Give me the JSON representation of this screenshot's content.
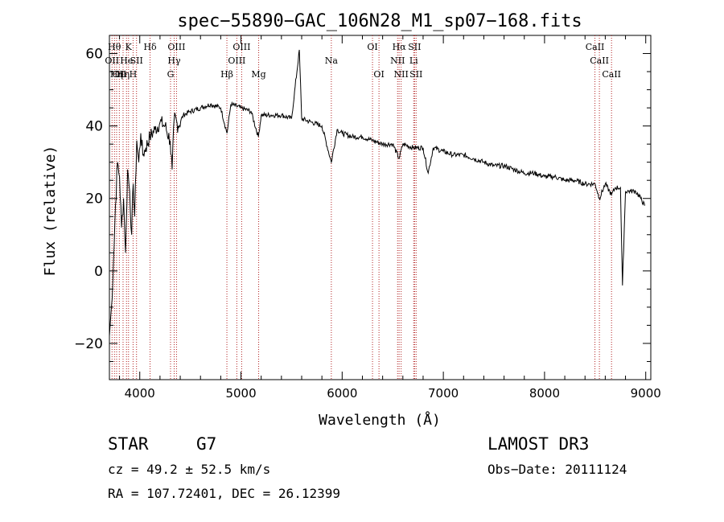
{
  "chart_data": {
    "type": "line",
    "title": "spec−55890−GAC_106N28_M1_sp07−168.fits",
    "xlabel": "Wavelength (Å)",
    "ylabel": "Flux (relative)",
    "xlim": [
      3700,
      9050
    ],
    "ylim": [
      -30,
      65
    ],
    "xticks": [
      4000,
      5000,
      6000,
      7000,
      8000,
      9000
    ],
    "yticks": [
      -20,
      0,
      20,
      40,
      60
    ],
    "xtick_labels": [
      "4000",
      "5000",
      "6000",
      "7000",
      "8000",
      "9000"
    ],
    "ytick_labels": [
      "−20",
      "0",
      "20",
      "40",
      "60"
    ],
    "series": [
      {
        "name": "flux",
        "x": [
          3700,
          3720,
          3740,
          3760,
          3780,
          3800,
          3820,
          3840,
          3860,
          3880,
          3900,
          3920,
          3935,
          3950,
          3970,
          3990,
          4010,
          4030,
          4060,
          4100,
          4150,
          4200,
          4250,
          4300,
          4320,
          4340,
          4380,
          4430,
          4500,
          4600,
          4700,
          4800,
          4862,
          4900,
          5000,
          5100,
          5172,
          5200,
          5300,
          5400,
          5500,
          5577,
          5600,
          5700,
          5800,
          5893,
          5950,
          6000,
          6100,
          6200,
          6300,
          6400,
          6500,
          6563,
          6600,
          6700,
          6800,
          6850,
          6900,
          7000,
          7100,
          7200,
          7300,
          7400,
          7500,
          7600,
          7700,
          7800,
          7900,
          8000,
          8100,
          8200,
          8300,
          8400,
          8500,
          8542,
          8600,
          8662,
          8700,
          8750,
          8770,
          8800,
          8850,
          8900,
          8950,
          8990
        ],
        "y": [
          -18,
          -10,
          2,
          18,
          30,
          26,
          12,
          20,
          5,
          28,
          22,
          10,
          24,
          15,
          36,
          30,
          38,
          32,
          34,
          37,
          39,
          41,
          40,
          36,
          28,
          42,
          40,
          43,
          44,
          45,
          46,
          45,
          38,
          46,
          45,
          44,
          37,
          43,
          43,
          43,
          42,
          61,
          42,
          41,
          40,
          30,
          39,
          38,
          37,
          37,
          36,
          35,
          35,
          31,
          35,
          34,
          34,
          27,
          34,
          33,
          32,
          32,
          31,
          30,
          29,
          29,
          28,
          27,
          27,
          26,
          26,
          25,
          25,
          24,
          24,
          20,
          24,
          21,
          23,
          23,
          -4,
          22,
          22,
          22,
          20,
          18
        ]
      }
    ],
    "line_markers": [
      {
        "wavelength": 3726,
        "label": "OII",
        "row": 2
      },
      {
        "wavelength": 3750,
        "label": "Hθ",
        "row": 1
      },
      {
        "wavelength": 3771,
        "label": "Hη",
        "row": 3
      },
      {
        "wavelength": 3798,
        "label": "OІІ",
        "row": 3
      },
      {
        "wavelength": 3835,
        "label": "Hη",
        "row": 3
      },
      {
        "wavelength": 3869,
        "label": "He",
        "row": 2
      },
      {
        "wavelength": 3889,
        "label": "K",
        "row": 1
      },
      {
        "wavelength": 3934,
        "label": "H",
        "row": 3
      },
      {
        "wavelength": 3968,
        "label": "SII",
        "row": 2
      },
      {
        "wavelength": 4102,
        "label": "Hδ",
        "row": 1
      },
      {
        "wavelength": 4304,
        "label": "G",
        "row": 3
      },
      {
        "wavelength": 4340,
        "label": "Hγ",
        "row": 2
      },
      {
        "wavelength": 4363,
        "label": "OIII",
        "row": 1
      },
      {
        "wavelength": 4861,
        "label": "Hβ",
        "row": 3
      },
      {
        "wavelength": 4959,
        "label": "OIII",
        "row": 2
      },
      {
        "wavelength": 5007,
        "label": "OIII",
        "row": 1
      },
      {
        "wavelength": 5175,
        "label": "Mg",
        "row": 3
      },
      {
        "wavelength": 5893,
        "label": "Na",
        "row": 2
      },
      {
        "wavelength": 6300,
        "label": "OI",
        "row": 1
      },
      {
        "wavelength": 6364,
        "label": "OI",
        "row": 3
      },
      {
        "wavelength": 6548,
        "label": "NII",
        "row": 2
      },
      {
        "wavelength": 6563,
        "label": "Hα",
        "row": 1
      },
      {
        "wavelength": 6583,
        "label": "NII",
        "row": 3
      },
      {
        "wavelength": 6707,
        "label": "Li",
        "row": 2
      },
      {
        "wavelength": 6716,
        "label": "SII",
        "row": 1
      },
      {
        "wavelength": 6731,
        "label": "SII",
        "row": 3
      },
      {
        "wavelength": 8498,
        "label": "CaII",
        "row": 1
      },
      {
        "wavelength": 8542,
        "label": "CaII",
        "row": 2
      },
      {
        "wavelength": 8662,
        "label": "CaII",
        "row": 3
      }
    ]
  },
  "info": {
    "object_class": "STAR",
    "subclass": "G7",
    "survey": "LAMOST DR3",
    "redshift": "cz = 49.2 ± 52.5 km/s",
    "obs_date": "Obs−Date: 20111124",
    "coords": "RA = 107.72401, DEC =  26.12399"
  },
  "colors": {
    "spectrum": "#000000",
    "marker": "#b22222",
    "axes": "#000000",
    "background": "#ffffff"
  }
}
